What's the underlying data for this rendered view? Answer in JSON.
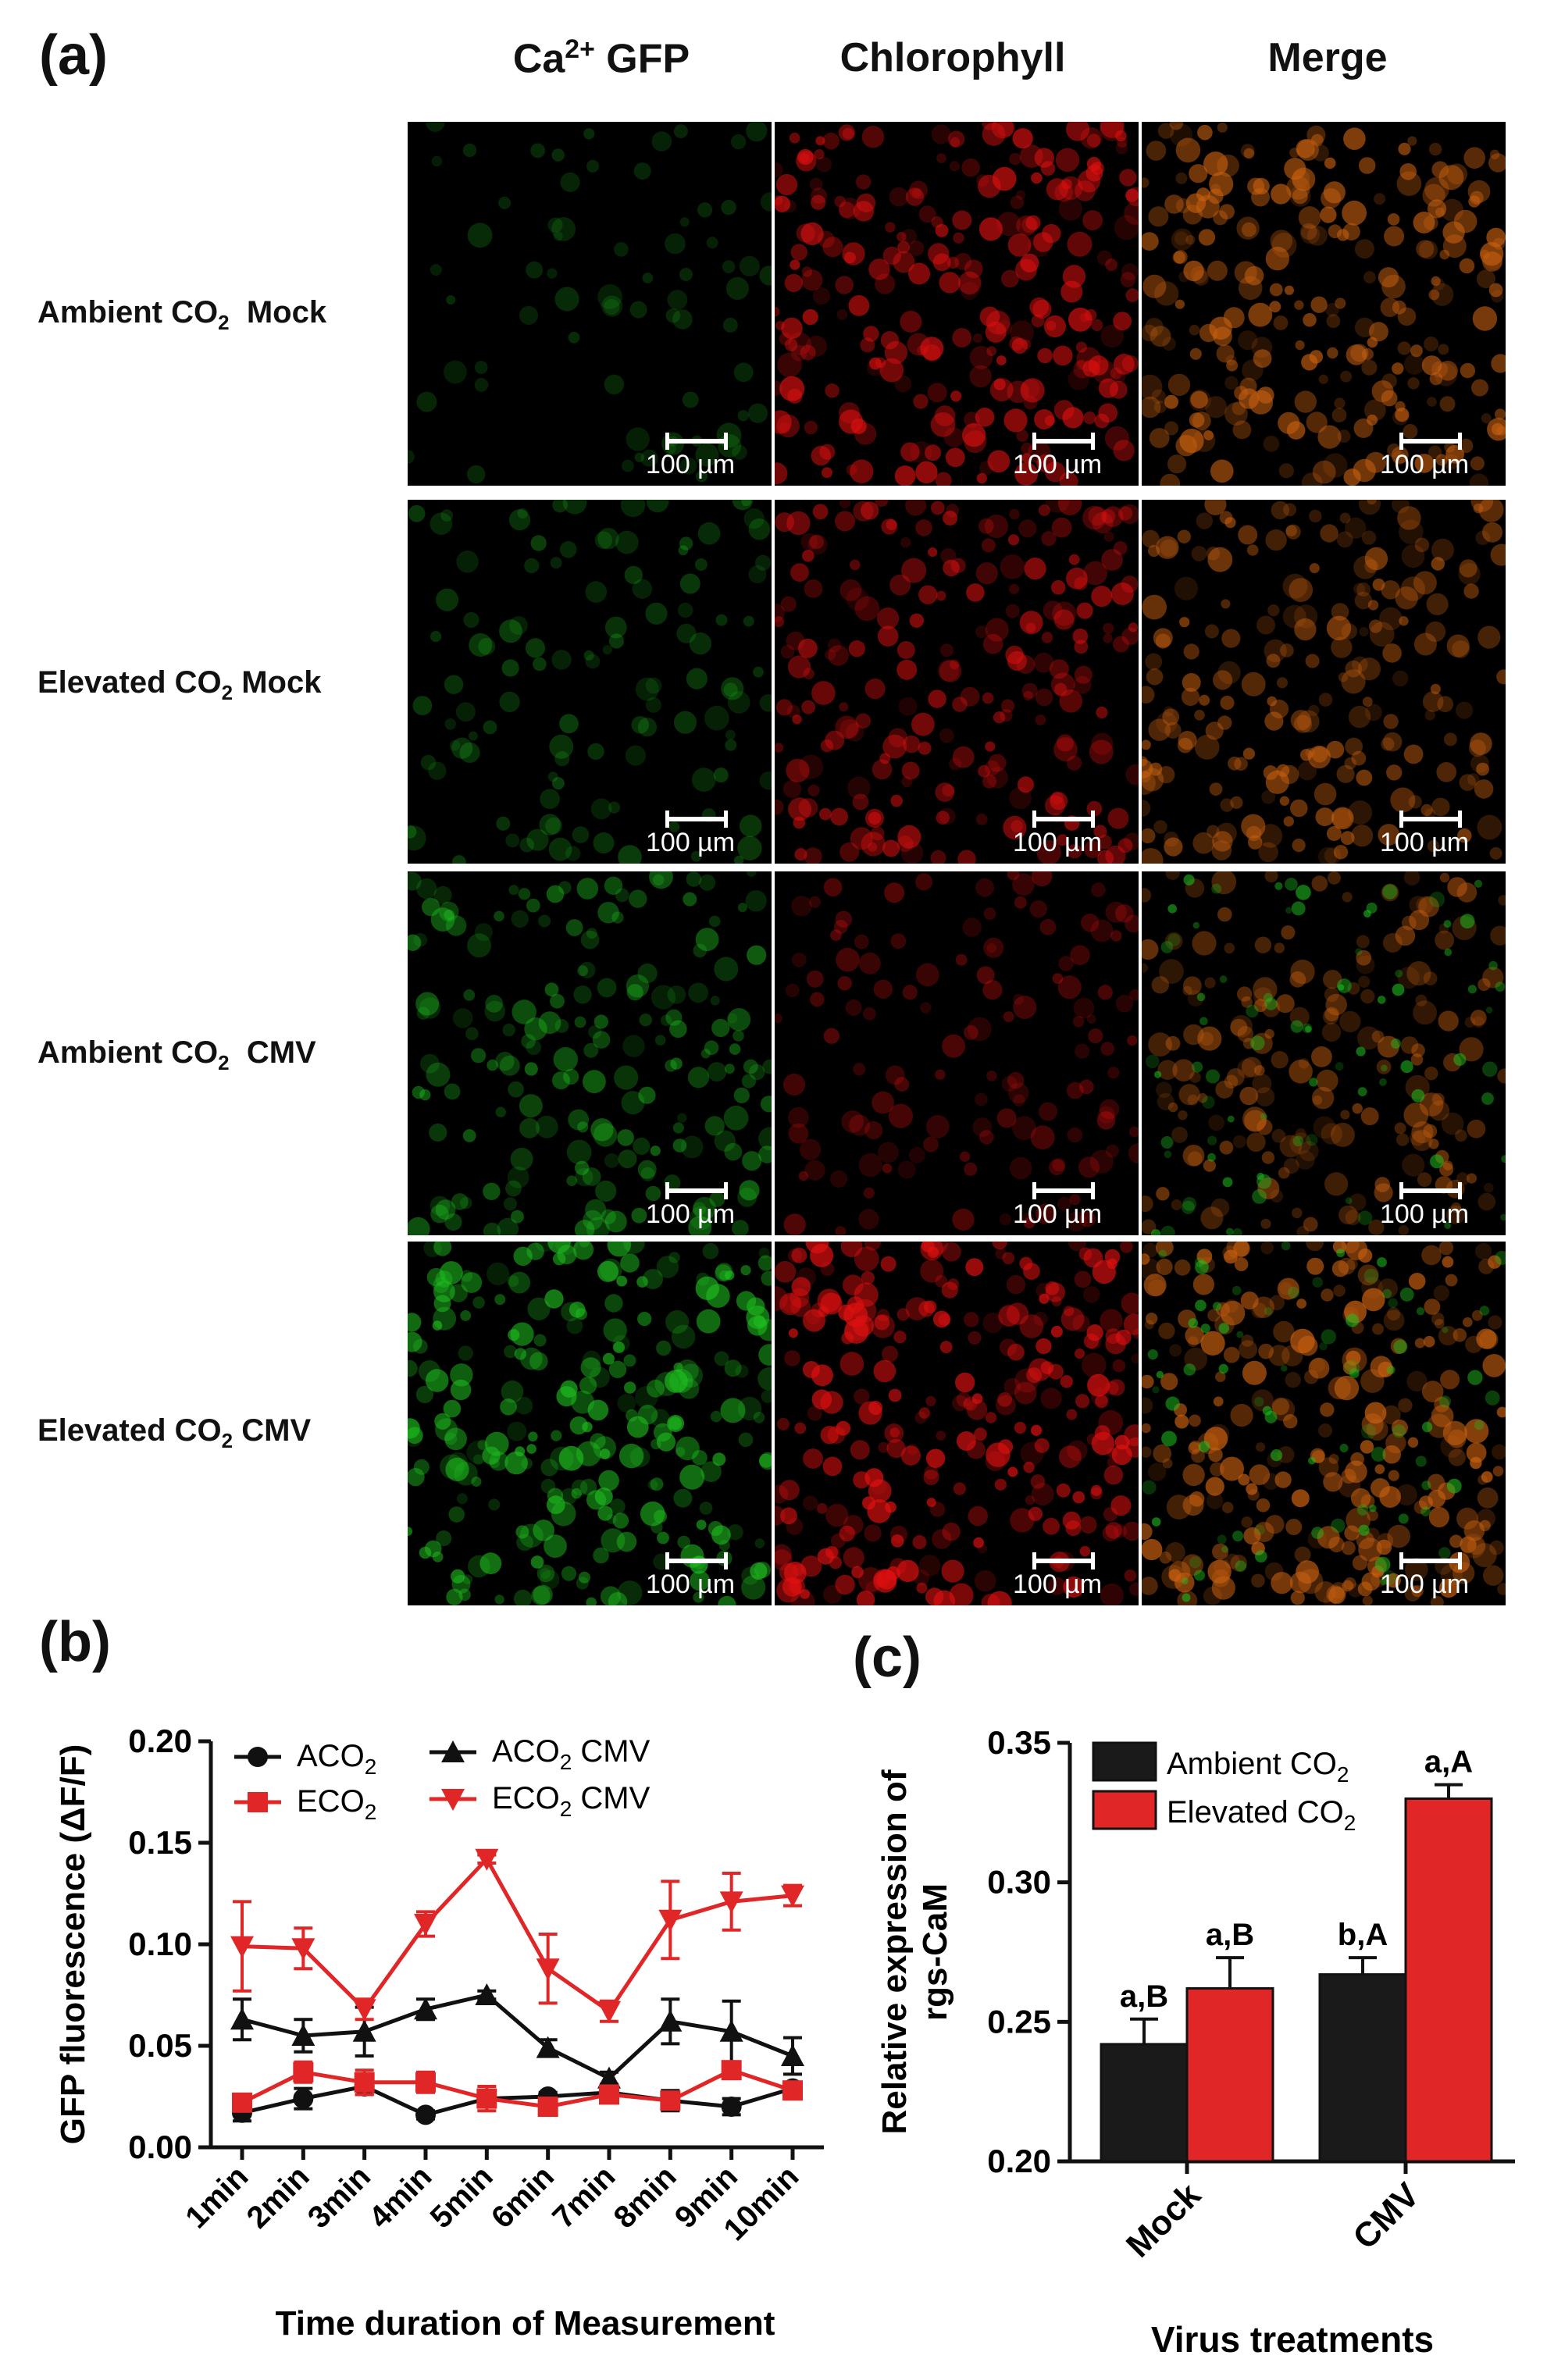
{
  "panel_a": {
    "letter": "(a)",
    "columns": [
      {
        "label": "Ca",
        "sup": "2+",
        "suffix": " GFP"
      },
      {
        "label": "Chlorophyll"
      },
      {
        "label": "Merge"
      }
    ],
    "rows": [
      {
        "pre": "Ambient CO",
        "sub": "2",
        "post": "  Mock"
      },
      {
        "pre": "Elevated CO",
        "sub": "2",
        "post": " Mock"
      },
      {
        "pre": "Ambient CO",
        "sub": "2",
        "post": "  CMV"
      },
      {
        "pre": "Elevated CO",
        "sub": "2",
        "post": " CMV"
      }
    ],
    "scale_label": "100 µm",
    "colors": {
      "gfp": "#1fbf1f",
      "chlorophyll": "#e01010",
      "merge": "#c86010"
    },
    "intensity": [
      {
        "gfp": 0.12,
        "chl": 0.85,
        "merge": 0.85
      },
      {
        "gfp": 0.28,
        "chl": 0.7,
        "merge": 0.7
      },
      {
        "gfp": 0.55,
        "chl": 0.35,
        "merge": 0.6
      },
      {
        "gfp": 0.85,
        "chl": 0.95,
        "merge": 0.95
      }
    ]
  },
  "chart_data": [
    {
      "panel": "(b)",
      "type": "line",
      "xlabel": "Time duration of Measurement",
      "ylabel": "GFP fluorescence (ΔF/F)",
      "x": [
        "1min",
        "2min",
        "3min",
        "4min",
        "5min",
        "6min",
        "7min",
        "8min",
        "9min",
        "10min"
      ],
      "ylim": [
        0,
        0.2
      ],
      "yticks": [
        "0.00",
        "0.05",
        "0.10",
        "0.15",
        "0.20"
      ],
      "series": [
        {
          "name": "ACO2",
          "marker": "circle",
          "color": "#111111",
          "values": [
            0.017,
            0.024,
            0.03,
            0.016,
            0.024,
            0.025,
            0.027,
            0.023,
            0.02,
            0.029
          ],
          "err": [
            0.004,
            0.005,
            0.004,
            0.002,
            0.003,
            0.002,
            0.002,
            0.005,
            0.004,
            0.003
          ]
        },
        {
          "name": "ACO2 CMV",
          "marker": "triangle",
          "color": "#111111",
          "values": [
            0.063,
            0.055,
            0.057,
            0.068,
            0.075,
            0.049,
            0.034,
            0.062,
            0.057,
            0.045
          ],
          "err": [
            0.01,
            0.008,
            0.012,
            0.005,
            0.002,
            0.004,
            0.003,
            0.011,
            0.015,
            0.009
          ]
        },
        {
          "name": "ECO2",
          "marker": "square",
          "color": "#e02626",
          "values": [
            0.022,
            0.037,
            0.032,
            0.032,
            0.024,
            0.02,
            0.026,
            0.023,
            0.038,
            0.028
          ],
          "err": [
            0.003,
            0.005,
            0.006,
            0.005,
            0.006,
            0.003,
            0.003,
            0.003,
            0.003,
            0.004
          ]
        },
        {
          "name": "ECO2 CMV",
          "marker": "triangle-down",
          "color": "#e02626",
          "values": [
            0.099,
            0.098,
            0.068,
            0.11,
            0.142,
            0.088,
            0.067,
            0.112,
            0.121,
            0.124
          ],
          "err": [
            0.022,
            0.01,
            0.005,
            0.006,
            0.002,
            0.017,
            0.005,
            0.019,
            0.014,
            0.005
          ]
        }
      ],
      "legend": [
        {
          "pre": "ACO",
          "sub": "2",
          "post": ""
        },
        {
          "pre": "ACO",
          "sub": "2",
          "post": " CMV"
        },
        {
          "pre": "ECO",
          "sub": "2",
          "post": ""
        },
        {
          "pre": "ECO",
          "sub": "2",
          "post": " CMV"
        }
      ]
    },
    {
      "panel": "(c)",
      "type": "bar",
      "xlabel": "Virus treatments",
      "ylabel_lines": [
        "Relative expression of",
        "rgs-CaM"
      ],
      "categories": [
        "Mock",
        "CMV"
      ],
      "ylim": [
        0.2,
        0.35
      ],
      "yticks": [
        "0.20",
        "0.25",
        "0.30",
        "0.35"
      ],
      "series": [
        {
          "name": "Ambient CO2",
          "color": "#1a1a1a",
          "values": [
            0.242,
            0.267
          ],
          "err": [
            0.009,
            0.006
          ],
          "letters": [
            "a,B",
            "b,A"
          ]
        },
        {
          "name": "Elevated CO2",
          "color": "#e02626",
          "values": [
            0.262,
            0.33
          ],
          "err": [
            0.011,
            0.005
          ],
          "letters": [
            "a,B",
            "a,A"
          ]
        }
      ],
      "legend": [
        {
          "pre": "Ambient CO",
          "sub": "2"
        },
        {
          "pre": "Elevated CO",
          "sub": "2"
        }
      ]
    }
  ]
}
